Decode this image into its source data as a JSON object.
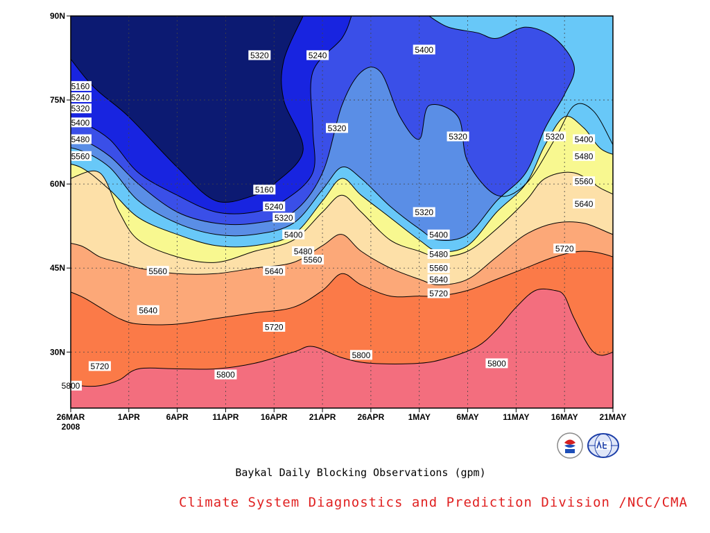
{
  "chart_data": {
    "type": "contour",
    "title": "",
    "caption": "Baykal Daily Blocking Observations (gpm)",
    "credit": "Climate System Diagnostics and Prediction Division /NCC/CMA",
    "x_tick_labels": [
      "26MAR",
      "1APR",
      "6APR",
      "11APR",
      "16APR",
      "21APR",
      "26APR",
      "1MAY",
      "6MAY",
      "11MAY",
      "16MAY",
      "21MAY"
    ],
    "x_year_label": "2008",
    "y_tick_labels": [
      "90N",
      "75N",
      "60N",
      "45N",
      "30N"
    ],
    "y_tick_values": [
      90,
      75,
      60,
      45,
      30
    ],
    "xlim_dates": [
      "2008-03-26",
      "2008-05-21"
    ],
    "ylim": [
      20,
      90
    ],
    "grid": true,
    "contour_levels": [
      5160,
      5240,
      5320,
      5400,
      5480,
      5560,
      5640,
      5720,
      5800
    ],
    "fill_colors": [
      "#0c1a72",
      "#1824e0",
      "#3a4fe8",
      "#5a8ee6",
      "#68c8f8",
      "#f8f890",
      "#fde0a8",
      "#fca878",
      "#fb7a48",
      "#f36e7e"
    ],
    "contours": [
      {
        "level": 5160,
        "points": [
          [
            -2,
            87
          ],
          [
            2,
            78
          ],
          [
            6,
            72
          ],
          [
            11,
            63
          ],
          [
            15,
            57
          ],
          [
            19,
            58
          ],
          [
            21,
            60
          ],
          [
            24,
            66
          ],
          [
            22,
            75
          ],
          [
            22,
            82
          ],
          [
            24,
            90
          ]
        ]
      },
      {
        "level": 5240,
        "points": [
          [
            -2,
            72
          ],
          [
            1,
            71
          ],
          [
            4,
            68
          ],
          [
            7,
            62
          ],
          [
            11,
            58
          ],
          [
            15,
            55
          ],
          [
            19,
            55
          ],
          [
            22,
            57
          ],
          [
            25,
            62
          ],
          [
            25,
            70
          ],
          [
            25,
            80
          ],
          [
            28,
            86
          ],
          [
            29,
            90
          ]
        ]
      },
      {
        "level": 5320,
        "points": [
          [
            -2,
            69
          ],
          [
            1,
            68
          ],
          [
            4,
            65
          ],
          [
            7,
            60
          ],
          [
            11,
            55
          ],
          [
            15,
            53
          ],
          [
            19,
            53
          ],
          [
            23,
            55
          ],
          [
            26,
            62
          ],
          [
            28,
            74
          ],
          [
            30,
            80
          ],
          [
            32,
            80
          ],
          [
            34,
            72
          ],
          [
            36,
            68
          ],
          [
            37,
            74
          ],
          [
            40,
            72
          ],
          [
            41,
            64
          ],
          [
            44,
            58
          ],
          [
            47,
            60
          ],
          [
            50,
            68
          ],
          [
            52,
            74
          ],
          [
            54,
            73
          ],
          [
            56,
            67
          ],
          [
            58,
            60
          ],
          [
            60,
            57
          ],
          [
            62,
            60
          ],
          [
            63,
            68
          ],
          [
            62,
            76
          ],
          [
            61,
            84
          ],
          [
            63,
            89
          ]
        ]
      },
      {
        "level": 5400,
        "points": [
          [
            -2,
            67
          ],
          [
            1,
            66
          ],
          [
            4,
            63
          ],
          [
            7,
            57
          ],
          [
            11,
            53
          ],
          [
            15,
            51
          ],
          [
            19,
            51
          ],
          [
            23,
            53
          ],
          [
            26,
            59
          ],
          [
            28,
            63
          ],
          [
            30,
            61
          ],
          [
            33,
            56
          ],
          [
            36,
            52
          ],
          [
            38,
            50
          ],
          [
            41,
            51
          ],
          [
            44,
            57
          ],
          [
            47,
            62
          ],
          [
            49,
            70
          ],
          [
            51,
            76
          ],
          [
            52,
            81
          ],
          [
            50,
            86
          ],
          [
            47,
            88
          ],
          [
            44,
            86
          ],
          [
            42,
            87
          ],
          [
            39,
            88
          ],
          [
            37,
            90
          ]
        ]
      },
      {
        "level": 5480,
        "points": [
          [
            -2,
            64
          ],
          [
            1,
            63
          ],
          [
            4,
            59
          ],
          [
            7,
            54
          ],
          [
            11,
            51
          ],
          [
            15,
            49
          ],
          [
            19,
            49
          ],
          [
            23,
            51
          ],
          [
            26,
            57
          ],
          [
            28,
            61
          ],
          [
            30,
            58
          ],
          [
            33,
            54
          ],
          [
            36,
            50
          ],
          [
            38,
            48
          ],
          [
            41,
            49
          ],
          [
            44,
            55
          ],
          [
            47,
            60
          ],
          [
            49,
            67
          ],
          [
            51,
            72
          ],
          [
            53,
            70
          ],
          [
            55,
            66
          ],
          [
            58,
            65
          ],
          [
            61,
            67
          ],
          [
            63,
            64
          ],
          [
            65,
            60
          ],
          [
            67,
            58
          ]
        ]
      },
      {
        "level": 5560,
        "points": [
          [
            -2,
            59
          ],
          [
            0,
            61
          ],
          [
            3,
            62
          ],
          [
            5,
            55
          ],
          [
            7,
            50
          ],
          [
            11,
            47
          ],
          [
            15,
            46
          ],
          [
            19,
            48
          ],
          [
            23,
            50
          ],
          [
            26,
            55
          ],
          [
            28,
            58
          ],
          [
            30,
            55
          ],
          [
            33,
            50
          ],
          [
            36,
            48
          ],
          [
            38,
            47
          ],
          [
            41,
            48
          ],
          [
            44,
            52
          ],
          [
            47,
            57
          ],
          [
            49,
            61
          ],
          [
            52,
            62
          ],
          [
            55,
            59
          ],
          [
            58,
            57
          ],
          [
            61,
            57
          ],
          [
            63,
            55
          ],
          [
            67,
            53
          ]
        ]
      },
      {
        "level": 5640,
        "points": [
          [
            -2,
            50
          ],
          [
            1,
            49
          ],
          [
            3,
            47
          ],
          [
            5,
            46
          ],
          [
            7,
            45
          ],
          [
            11,
            44
          ],
          [
            15,
            44
          ],
          [
            19,
            45
          ],
          [
            23,
            46
          ],
          [
            26,
            49
          ],
          [
            28,
            51
          ],
          [
            30,
            48
          ],
          [
            33,
            45
          ],
          [
            36,
            43
          ],
          [
            38,
            42
          ],
          [
            41,
            43
          ],
          [
            44,
            47
          ],
          [
            47,
            51
          ],
          [
            50,
            53
          ],
          [
            53,
            53
          ],
          [
            56,
            51
          ],
          [
            58,
            50
          ],
          [
            60,
            50
          ],
          [
            63,
            50
          ],
          [
            67,
            50
          ]
        ]
      },
      {
        "level": 5720,
        "points": [
          [
            -2,
            42
          ],
          [
            1,
            40
          ],
          [
            3,
            38
          ],
          [
            5,
            36
          ],
          [
            7,
            35
          ],
          [
            11,
            35
          ],
          [
            15,
            36
          ],
          [
            19,
            37
          ],
          [
            23,
            38
          ],
          [
            26,
            41
          ],
          [
            28,
            44
          ],
          [
            30,
            42
          ],
          [
            33,
            40
          ],
          [
            36,
            40
          ],
          [
            38,
            40
          ],
          [
            41,
            41
          ],
          [
            44,
            43
          ],
          [
            47,
            45
          ],
          [
            50,
            47
          ],
          [
            53,
            48
          ],
          [
            56,
            47
          ],
          [
            58,
            45
          ],
          [
            60,
            44
          ],
          [
            63,
            44
          ],
          [
            67,
            44
          ]
        ]
      },
      {
        "level": 5800,
        "points": [
          [
            -2,
            25
          ],
          [
            1,
            24
          ],
          [
            3,
            24
          ],
          [
            5,
            25
          ],
          [
            7,
            27
          ],
          [
            11,
            27
          ],
          [
            15,
            27
          ],
          [
            19,
            28
          ],
          [
            23,
            30
          ],
          [
            25,
            31
          ],
          [
            28,
            29
          ],
          [
            31,
            28
          ],
          [
            36,
            28
          ],
          [
            39,
            29
          ],
          [
            42,
            31
          ],
          [
            44,
            34
          ],
          [
            46,
            38
          ],
          [
            48,
            41
          ],
          [
            50,
            41
          ],
          [
            51,
            40
          ],
          [
            52,
            36
          ],
          [
            54,
            30
          ],
          [
            56,
            30
          ],
          [
            58,
            33
          ]
        ]
      }
    ],
    "contour_labels": [
      {
        "text": "5160",
        "date": 1,
        "lat": 77.5
      },
      {
        "text": "5240",
        "date": 1,
        "lat": 75.5
      },
      {
        "text": "5320",
        "date": 1,
        "lat": 73.5
      },
      {
        "text": "5400",
        "date": 1,
        "lat": 71
      },
      {
        "text": "5480",
        "date": 1,
        "lat": 68
      },
      {
        "text": "5560",
        "date": 1,
        "lat": 65
      },
      {
        "text": "5320",
        "date": 19.5,
        "lat": 83
      },
      {
        "text": "5240",
        "date": 25.5,
        "lat": 83
      },
      {
        "text": "5400",
        "date": 36.5,
        "lat": 84
      },
      {
        "text": "5320",
        "date": 27.5,
        "lat": 70
      },
      {
        "text": "5320",
        "date": 40,
        "lat": 68.5
      },
      {
        "text": "5320",
        "date": 50,
        "lat": 68.5
      },
      {
        "text": "5400",
        "date": 53,
        "lat": 68
      },
      {
        "text": "5480",
        "date": 53,
        "lat": 65
      },
      {
        "text": "5560",
        "date": 53,
        "lat": 60.5
      },
      {
        "text": "5640",
        "date": 53,
        "lat": 56.5
      },
      {
        "text": "5720",
        "date": 51,
        "lat": 48.5
      },
      {
        "text": "5160",
        "date": 20,
        "lat": 59
      },
      {
        "text": "5240",
        "date": 21,
        "lat": 56
      },
      {
        "text": "5320",
        "date": 22,
        "lat": 54
      },
      {
        "text": "5400",
        "date": 23,
        "lat": 51
      },
      {
        "text": "5480",
        "date": 24,
        "lat": 48
      },
      {
        "text": "5560",
        "date": 25,
        "lat": 46.5
      },
      {
        "text": "5320",
        "date": 36.5,
        "lat": 55
      },
      {
        "text": "5400",
        "date": 38,
        "lat": 51
      },
      {
        "text": "5480",
        "date": 38,
        "lat": 47.5
      },
      {
        "text": "5560",
        "date": 38,
        "lat": 45
      },
      {
        "text": "5640",
        "date": 38,
        "lat": 43
      },
      {
        "text": "5720",
        "date": 38,
        "lat": 40.5
      },
      {
        "text": "5560",
        "date": 9,
        "lat": 44.5
      },
      {
        "text": "5640",
        "date": 21,
        "lat": 44.5
      },
      {
        "text": "5640",
        "date": 8,
        "lat": 37.5
      },
      {
        "text": "5720",
        "date": 21,
        "lat": 34.5
      },
      {
        "text": "5720",
        "date": 3,
        "lat": 27.5
      },
      {
        "text": "5800",
        "date": 16,
        "lat": 26
      },
      {
        "text": "5800",
        "date": 30,
        "lat": 29.5
      },
      {
        "text": "5800",
        "date": 44,
        "lat": 28
      },
      {
        "text": "5800",
        "date": 0,
        "lat": 24
      }
    ]
  }
}
